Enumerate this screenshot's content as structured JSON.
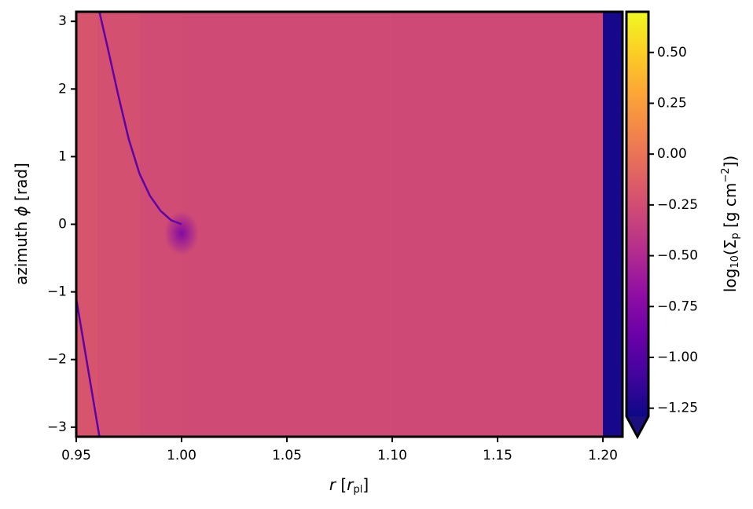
{
  "chart_data": {
    "type": "heatmap",
    "colormap": "plasma",
    "under_color": "#1b0f7e",
    "xlabel_parts": [
      "r",
      " [",
      "r",
      "pl",
      "]"
    ],
    "ylabel_parts": [
      "azimuth ",
      "ϕ",
      " [rad]"
    ],
    "colorbar_label_parts": [
      "log",
      "10",
      "(",
      "Σ",
      "p",
      " [g cm",
      "−2",
      "])"
    ],
    "xlim": [
      0.95,
      1.2093
    ],
    "ylim": [
      -3.14159,
      3.14159
    ],
    "clim": [
      -1.29,
      0.7
    ],
    "xticks": [
      {
        "value": 0.95,
        "label": "0.95"
      },
      {
        "value": 1.0,
        "label": "1.00"
      },
      {
        "value": 1.05,
        "label": "1.05"
      },
      {
        "value": 1.1,
        "label": "1.10"
      },
      {
        "value": 1.15,
        "label": "1.15"
      },
      {
        "value": 1.2,
        "label": "1.20"
      }
    ],
    "yticks": [
      3,
      2,
      1,
      0,
      {
        "value": -1,
        "label": "−1"
      },
      {
        "value": -2,
        "label": "−2"
      },
      {
        "value": -3,
        "label": "−3"
      }
    ],
    "cticks": [
      {
        "value": 0.5,
        "label": "0.50"
      },
      {
        "value": 0.25,
        "label": "0.25"
      },
      {
        "value": 0.0,
        "label": "0.00"
      },
      {
        "value": -0.25,
        "label": "−0.25"
      },
      {
        "value": -0.5,
        "label": "−0.50"
      },
      {
        "value": -0.75,
        "label": "−0.75"
      },
      {
        "value": -1.0,
        "label": "−1.00"
      },
      {
        "value": -1.25,
        "label": "−1.25"
      }
    ],
    "heatmap": {
      "r_edges": [
        0.95,
        0.96,
        0.98,
        1.0,
        1.05,
        1.1,
        1.15,
        1.2,
        1.2093
      ],
      "values": [
        -0.2,
        -0.23,
        -0.26,
        -0.27,
        -0.27,
        -0.28,
        -0.28,
        -1.25
      ]
    },
    "wake": {
      "r": [
        0.961,
        0.965,
        0.97,
        0.975,
        0.98,
        0.985,
        0.99,
        0.995,
        1.0,
        null,
        0.95,
        0.961
      ],
      "phi": [
        3.14,
        2.6,
        1.9,
        1.25,
        0.75,
        0.42,
        0.2,
        0.06,
        0.0,
        null,
        -1.1,
        -3.14
      ],
      "value": -0.95
    }
  }
}
